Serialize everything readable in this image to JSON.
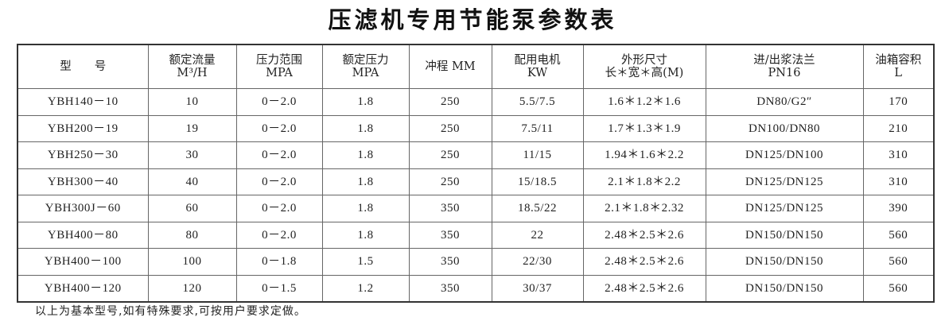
{
  "title": "压滤机专用节能泵参数表",
  "headers": [
    {
      "line1": "型　　号",
      "line2": ""
    },
    {
      "line1": "额定流量",
      "line2": "M³/H"
    },
    {
      "line1": "压力范围",
      "line2": "MPA"
    },
    {
      "line1": "额定压力",
      "line2": "MPA"
    },
    {
      "line1": "冲程 MM",
      "line2": ""
    },
    {
      "line1": "配用电机",
      "line2": "KW"
    },
    {
      "line1": "外形尺寸",
      "line2": "长＊宽＊高(M)"
    },
    {
      "line1": "进/出浆法兰",
      "line2": "PN16"
    },
    {
      "line1": "油箱容积",
      "line2": "L"
    }
  ],
  "rows": [
    [
      "YBH140－10",
      "10",
      "0－2.0",
      "1.8",
      "250",
      "5.5/7.5",
      "1.6＊1.2＊1.6",
      "DN80/G2″",
      "170"
    ],
    [
      "YBH200－19",
      "19",
      "0－2.0",
      "1.8",
      "250",
      "7.5/11",
      "1.7＊1.3＊1.9",
      "DN100/DN80",
      "210"
    ],
    [
      "YBH250－30",
      "30",
      "0－2.0",
      "1.8",
      "250",
      "11/15",
      "1.94＊1.6＊2.2",
      "DN125/DN100",
      "310"
    ],
    [
      "YBH300－40",
      "40",
      "0－2.0",
      "1.8",
      "250",
      "15/18.5",
      "2.1＊1.8＊2.2",
      "DN125/DN125",
      "310"
    ],
    [
      "YBH300J－60",
      "60",
      "0－2.0",
      "1.8",
      "350",
      "18.5/22",
      "2.1＊1.8＊2.32",
      "DN125/DN125",
      "390"
    ],
    [
      "YBH400－80",
      "80",
      "0－2.0",
      "1.8",
      "350",
      "22",
      "2.48＊2.5＊2.6",
      "DN150/DN150",
      "560"
    ],
    [
      "YBH400－100",
      "100",
      "0－1.8",
      "1.5",
      "350",
      "22/30",
      "2.48＊2.5＊2.6",
      "DN150/DN150",
      "560"
    ],
    [
      "YBH400－120",
      "120",
      "0－1.5",
      "1.2",
      "350",
      "30/37",
      "2.48＊2.5＊2.6",
      "DN150/DN150",
      "560"
    ]
  ],
  "footnote": "以上为基本型号,如有特殊要求,可按用户要求定做。"
}
